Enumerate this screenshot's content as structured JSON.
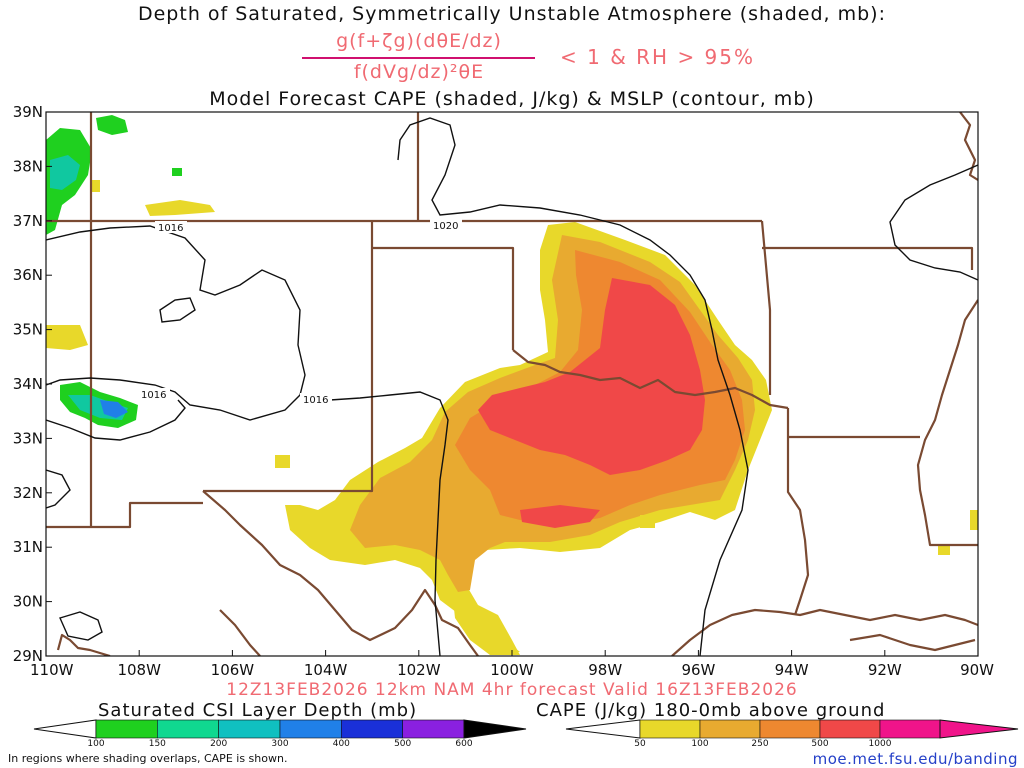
{
  "titles": {
    "line1": "Depth of Saturated, Symmetrically Unstable Atmosphere (shaded, mb):",
    "frac_numerator": "g(f+ζg)(dθE/dz)",
    "frac_denominator": "f(dVg/dz)²θE",
    "condition": "< 1 & RH > 95%",
    "line3": "Model Forecast CAPE (shaded, J/kg) & MSLP (contour, mb)"
  },
  "valid_line": "12Z13FEB2026 12km NAM 4hr forecast Valid 16Z13FEB2026",
  "axes": {
    "lat_labels": [
      "29N",
      "30N",
      "31N",
      "32N",
      "33N",
      "34N",
      "35N",
      "36N",
      "37N",
      "38N",
      "39N"
    ],
    "lon_labels": [
      "110W",
      "108W",
      "106W",
      "104W",
      "102W",
      "100W",
      "98W",
      "96W",
      "94W",
      "92W",
      "90W"
    ]
  },
  "pressure_labels": [
    "1016",
    "1020",
    "1016",
    "1016"
  ],
  "colorbars": {
    "csi": {
      "title": "Saturated CSI Layer Depth (mb)",
      "ticks": [
        "100",
        "150",
        "200",
        "300",
        "400",
        "500",
        "600"
      ],
      "colors": [
        "#1fd01f",
        "#10d890",
        "#10c0c0",
        "#2080e8",
        "#1a30d8",
        "#8a20e0"
      ]
    },
    "cape": {
      "title": "CAPE (J/kg) 180-0mb above ground",
      "ticks": [
        "50",
        "100",
        "250",
        "500",
        "1000"
      ],
      "colors": [
        "#e8d82a",
        "#e8aa30",
        "#ee8830",
        "#f04848",
        "#f0148a"
      ]
    }
  },
  "footnote": "In regions where shading overlaps, CAPE is shown.",
  "credit": "moe.met.fsu.edu/banding",
  "colors": {
    "border": "#7a4a32",
    "cape_yellow": "#e8d82a",
    "cape_orange_light": "#e8aa30",
    "cape_orange": "#ee8830",
    "cape_red": "#f04848",
    "csi_green": "#1fd01f",
    "csi_teal": "#10c8a0",
    "csi_cyan": "#10b8d8",
    "csi_blue": "#2080e8"
  }
}
